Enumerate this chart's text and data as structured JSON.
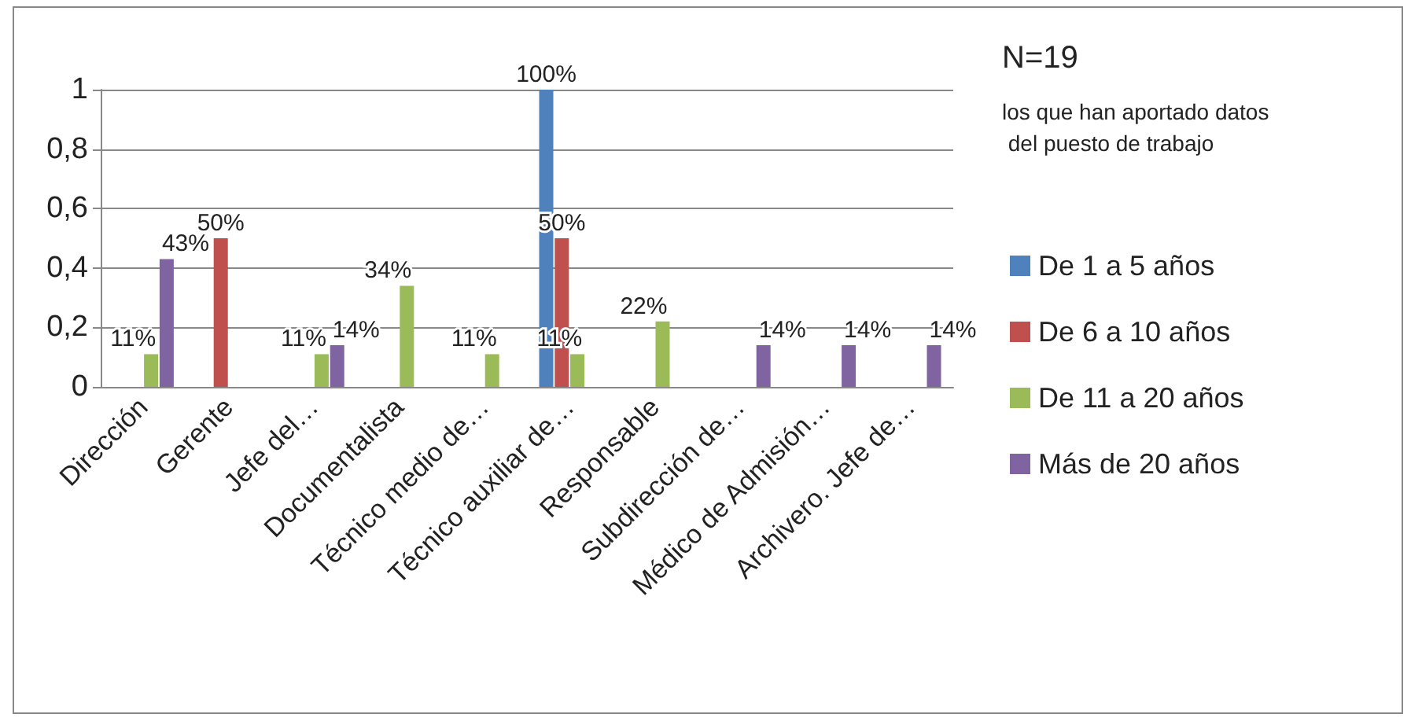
{
  "chart_data": {
    "type": "bar",
    "categories": [
      "Dirección",
      "Gerente",
      "Jefe del…",
      "Documentalista",
      "Técnico medio de…",
      "Técnico auxiliar de…",
      "Responsable",
      "Subdirección de…",
      "Médico de Admisión…",
      "Archivero. Jefe de…"
    ],
    "series": [
      {
        "name": "De 1 a 5 años",
        "color": "#4f81bd",
        "values": [
          null,
          null,
          null,
          null,
          null,
          1,
          null,
          null,
          null,
          null
        ],
        "value_labels": [
          null,
          null,
          null,
          null,
          null,
          "100%",
          null,
          null,
          null,
          null
        ]
      },
      {
        "name": "De 6 a 10 años",
        "color": "#c0504d",
        "values": [
          null,
          0.5,
          null,
          null,
          null,
          0.5,
          null,
          null,
          null,
          null
        ],
        "value_labels": [
          null,
          "50%",
          null,
          null,
          null,
          "50%",
          null,
          null,
          null,
          null
        ]
      },
      {
        "name": "De 11 a 20 años",
        "color": "#9bbb59",
        "values": [
          0.11,
          null,
          0.11,
          0.34,
          0.11,
          0.11,
          0.22,
          null,
          null,
          null
        ],
        "value_labels": [
          "11%",
          null,
          "11%",
          "34%",
          "11%",
          "11%",
          "22%",
          null,
          null,
          null
        ]
      },
      {
        "name": "Más de 20 años",
        "color": "#8064a2",
        "values": [
          0.43,
          null,
          0.14,
          null,
          null,
          null,
          null,
          0.14,
          0.14,
          0.14
        ],
        "value_labels": [
          "43%",
          null,
          "14%",
          null,
          null,
          null,
          null,
          "14%",
          "14%",
          "14%"
        ]
      }
    ],
    "ylim": [
      0,
      1
    ],
    "yticks": [
      0,
      {
        "value": 0.2,
        "label": "0,2"
      },
      {
        "value": 0.4,
        "label": "0,4"
      },
      {
        "value": 0.6,
        "label": "0,6"
      },
      {
        "value": 0.8,
        "label": "0,8"
      },
      1
    ],
    "grid": "y",
    "legend": "right",
    "annotations": [
      "N=19",
      "los que han aportado datos del puesto de trabajo"
    ]
  }
}
